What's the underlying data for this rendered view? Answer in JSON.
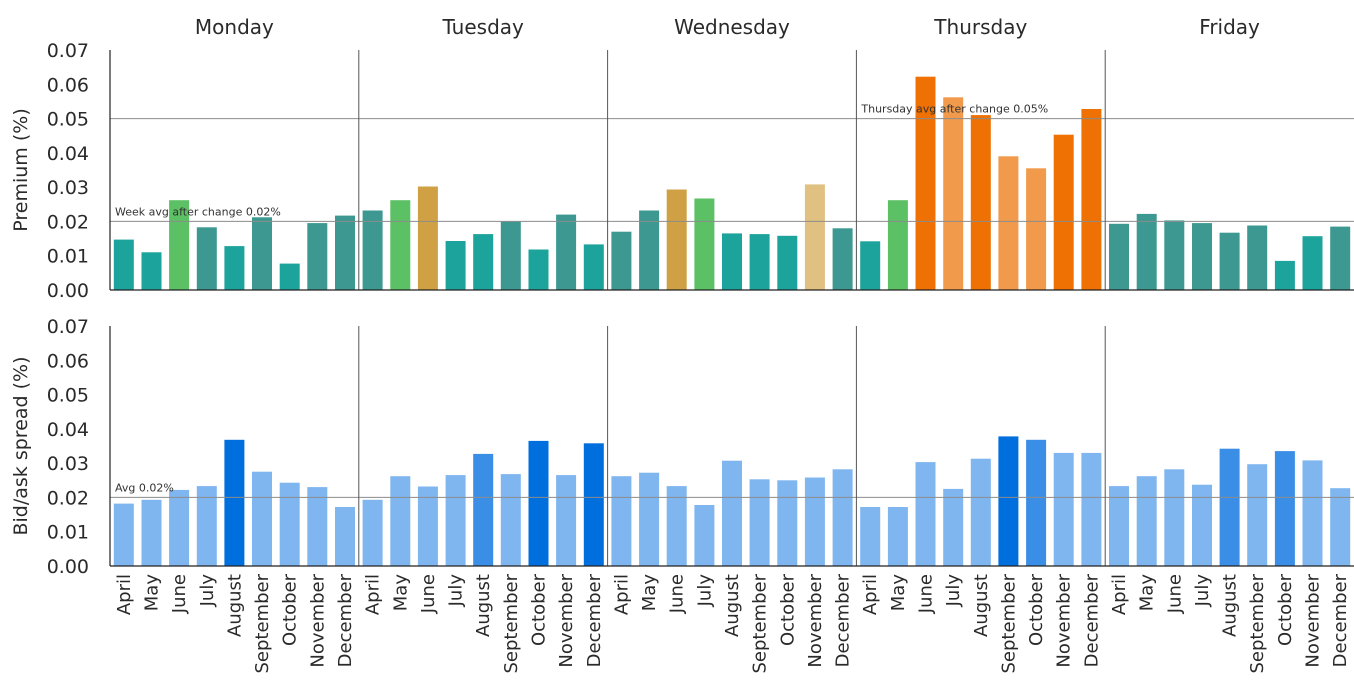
{
  "chart_data": {
    "type": "bar",
    "days": [
      "Monday",
      "Tuesday",
      "Wednesday",
      "Thursday",
      "Friday"
    ],
    "months": [
      "April",
      "May",
      "June",
      "July",
      "August",
      "September",
      "October",
      "November",
      "December"
    ],
    "ylim": [
      0,
      0.07
    ],
    "yticks": [
      "0.00",
      "0.01",
      "0.02",
      "0.03",
      "0.04",
      "0.05",
      "0.06",
      "0.07"
    ],
    "panels": [
      {
        "ylabel": "Premium (%)",
        "reference_lines": [
          {
            "value": 0.02,
            "label": "Week avg after change 0.02%",
            "day": "Monday"
          },
          {
            "value": 0.05,
            "label": "Thursday avg after change 0.05%",
            "day": "Thursday"
          }
        ],
        "values": {
          "Monday": [
            0.0147,
            0.011,
            0.0262,
            0.0183,
            0.0128,
            0.0212,
            0.0077,
            0.0195,
            0.0217
          ],
          "Tuesday": [
            0.0232,
            0.0262,
            0.0302,
            0.0143,
            0.0163,
            0.02,
            0.0118,
            0.022,
            0.0133
          ],
          "Wednesday": [
            0.017,
            0.0232,
            0.0293,
            0.0267,
            0.0165,
            0.0163,
            0.0158,
            0.0308,
            0.018
          ],
          "Thursday": [
            0.0142,
            0.0262,
            0.0622,
            0.0562,
            0.051,
            0.039,
            0.0355,
            0.0453,
            0.0528
          ],
          "Friday": [
            0.0193,
            0.0222,
            0.0203,
            0.0195,
            0.0167,
            0.0188,
            0.0085,
            0.0157,
            0.0185
          ]
        },
        "colors": {
          "Monday": [
            "#1ba39c",
            "#1ba39c",
            "#5cc165",
            "#3d9891",
            "#1ba39c",
            "#3d9891",
            "#1ba39c",
            "#3d9891",
            "#3d9891"
          ],
          "Tuesday": [
            "#3d9891",
            "#5cc165",
            "#cfa044",
            "#1ba39c",
            "#1ba39c",
            "#3d9891",
            "#1ba39c",
            "#3d9891",
            "#1ba39c"
          ],
          "Wednesday": [
            "#3d9891",
            "#3d9891",
            "#cfa044",
            "#5cc165",
            "#1ba39c",
            "#1ba39c",
            "#1ba39c",
            "#e0c182",
            "#3d9891"
          ],
          "Thursday": [
            "#1ba39c",
            "#5cc165",
            "#ef7003",
            "#f19a4b",
            "#ef7003",
            "#f19a4b",
            "#f19a4b",
            "#ef7003",
            "#ef7003"
          ],
          "Friday": [
            "#3d9891",
            "#3d9891",
            "#3d9891",
            "#3d9891",
            "#3d9891",
            "#3d9891",
            "#1ba39c",
            "#1ba39c",
            "#3d9891"
          ]
        }
      },
      {
        "ylabel": "Bid/ask spread (%)",
        "reference_lines": [
          {
            "value": 0.02,
            "label": "Avg 0.02%",
            "day": "Monday"
          }
        ],
        "values": {
          "Monday": [
            0.0182,
            0.0193,
            0.0222,
            0.0233,
            0.0368,
            0.0275,
            0.0243,
            0.023,
            0.0172
          ],
          "Tuesday": [
            0.0193,
            0.0262,
            0.0232,
            0.0265,
            0.0327,
            0.0268,
            0.0365,
            0.0265,
            0.0358
          ],
          "Wednesday": [
            0.0262,
            0.0272,
            0.0233,
            0.0178,
            0.0307,
            0.0253,
            0.025,
            0.0258,
            0.0282
          ],
          "Thursday": [
            0.0172,
            0.0172,
            0.0303,
            0.0225,
            0.0313,
            0.0378,
            0.0368,
            0.033,
            0.033
          ],
          "Friday": [
            0.0233,
            0.0262,
            0.0282,
            0.0237,
            0.0342,
            0.0297,
            0.0335,
            0.0308,
            0.0227
          ]
        },
        "colors": {
          "Monday": [
            "#7fb6f0",
            "#7fb6f0",
            "#7fb6f0",
            "#7fb6f0",
            "#006fde",
            "#7fb6f0",
            "#7fb6f0",
            "#7fb6f0",
            "#7fb6f0"
          ],
          "Tuesday": [
            "#7fb6f0",
            "#7fb6f0",
            "#7fb6f0",
            "#7fb6f0",
            "#3b8ee6",
            "#7fb6f0",
            "#006fde",
            "#7fb6f0",
            "#006fde"
          ],
          "Wednesday": [
            "#7fb6f0",
            "#7fb6f0",
            "#7fb6f0",
            "#7fb6f0",
            "#7fb6f0",
            "#7fb6f0",
            "#7fb6f0",
            "#7fb6f0",
            "#7fb6f0"
          ],
          "Thursday": [
            "#7fb6f0",
            "#7fb6f0",
            "#7fb6f0",
            "#7fb6f0",
            "#7fb6f0",
            "#006fde",
            "#3b8ee6",
            "#7fb6f0",
            "#7fb6f0"
          ],
          "Friday": [
            "#7fb6f0",
            "#7fb6f0",
            "#7fb6f0",
            "#7fb6f0",
            "#3b8ee6",
            "#7fb6f0",
            "#3b8ee6",
            "#7fb6f0",
            "#7fb6f0"
          ]
        }
      }
    ]
  }
}
